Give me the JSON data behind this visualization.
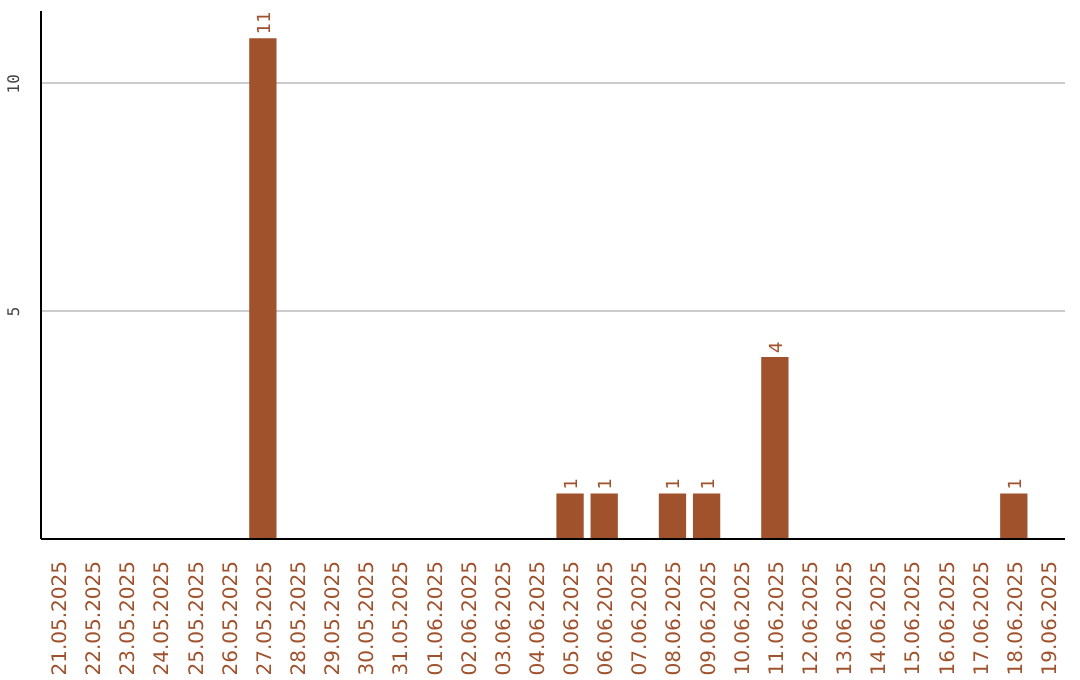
{
  "chart_data": {
    "type": "bar",
    "categories": [
      "21.05.2025",
      "22.05.2025",
      "23.05.2025",
      "24.05.2025",
      "25.05.2025",
      "26.05.2025",
      "27.05.2025",
      "28.05.2025",
      "29.05.2025",
      "30.05.2025",
      "31.05.2025",
      "01.06.2025",
      "02.06.2025",
      "03.06.2025",
      "04.06.2025",
      "05.06.2025",
      "06.06.2025",
      "07.06.2025",
      "08.06.2025",
      "09.06.2025",
      "10.06.2025",
      "11.06.2025",
      "12.06.2025",
      "13.06.2025",
      "14.06.2025",
      "15.06.2025",
      "16.06.2025",
      "17.06.2025",
      "18.06.2025",
      "19.06.2025"
    ],
    "values": [
      null,
      null,
      null,
      null,
      null,
      null,
      11,
      null,
      null,
      null,
      null,
      null,
      null,
      null,
      null,
      1,
      1,
      null,
      1,
      1,
      null,
      4,
      null,
      null,
      null,
      null,
      null,
      null,
      1,
      null
    ],
    "color": "#a0522d",
    "ylim": [
      0,
      11.6
    ],
    "yticks": [
      {
        "value": 0,
        "label": null
      },
      5,
      10
    ],
    "grid": "y",
    "data_labels": true
  }
}
